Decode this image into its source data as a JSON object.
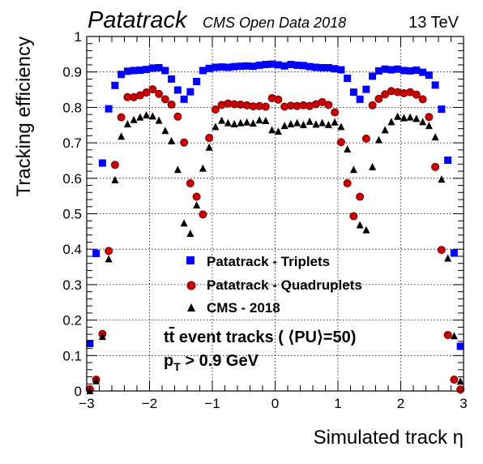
{
  "chart_data": {
    "type": "scatter",
    "header": {
      "brand": "Patatrack",
      "subtitle": "CMS Open Data 2018",
      "energy": "13 TeV"
    },
    "xlabel": "Simulated track η",
    "ylabel": "Tracking efficiency",
    "xlim": [
      -3,
      3
    ],
    "ylim": [
      0,
      1
    ],
    "xticks": [
      -3,
      -2,
      -1,
      0,
      1,
      2,
      3
    ],
    "xtick_labels": [
      "−3",
      "−2",
      "−1",
      "0",
      "1",
      "2",
      "3"
    ],
    "yticks": [
      0,
      0.1,
      0.2,
      0.3,
      0.4,
      0.5,
      0.6,
      0.7,
      0.8,
      0.9,
      1
    ],
    "ytick_labels": [
      "0",
      "0.1",
      "0.2",
      "0.3",
      "0.4",
      "0.5",
      "0.6",
      "0.7",
      "0.8",
      "0.9",
      "1"
    ],
    "grid": true,
    "legend_position": "center-left",
    "annotations": {
      "line1_pre": "t",
      "line1_bar": "t",
      "line1_post": " event tracks ( ⟨PU⟩=50)",
      "line2_main": "p",
      "line2_sub": "T",
      "line2_post": " > 0.9 GeV"
    },
    "x": [
      -2.95,
      -2.85,
      -2.75,
      -2.65,
      -2.55,
      -2.45,
      -2.35,
      -2.25,
      -2.15,
      -2.05,
      -1.95,
      -1.85,
      -1.75,
      -1.65,
      -1.55,
      -1.45,
      -1.35,
      -1.25,
      -1.15,
      -1.05,
      -0.95,
      -0.85,
      -0.75,
      -0.65,
      -0.55,
      -0.45,
      -0.35,
      -0.25,
      -0.15,
      -0.05,
      0.05,
      0.15,
      0.25,
      0.35,
      0.45,
      0.55,
      0.65,
      0.75,
      0.85,
      0.95,
      1.05,
      1.15,
      1.25,
      1.35,
      1.45,
      1.55,
      1.65,
      1.75,
      1.85,
      1.95,
      2.05,
      2.15,
      2.25,
      2.35,
      2.45,
      2.55,
      2.65,
      2.75,
      2.85,
      2.95
    ],
    "series": [
      {
        "name": "Patatrack - Triplets",
        "color": "#0000ff",
        "marker": "square",
        "values": [
          0.134,
          0.388,
          0.643,
          0.796,
          0.862,
          0.893,
          0.902,
          0.904,
          0.905,
          0.907,
          0.911,
          0.912,
          0.904,
          0.88,
          0.849,
          0.823,
          0.844,
          0.873,
          0.904,
          0.91,
          0.913,
          0.914,
          0.913,
          0.915,
          0.916,
          0.917,
          0.916,
          0.919,
          0.921,
          0.922,
          0.92,
          0.917,
          0.921,
          0.919,
          0.918,
          0.915,
          0.913,
          0.912,
          0.912,
          0.909,
          0.906,
          0.882,
          0.843,
          0.823,
          0.851,
          0.888,
          0.903,
          0.908,
          0.906,
          0.908,
          0.904,
          0.903,
          0.905,
          0.899,
          0.891,
          0.863,
          0.795,
          0.651,
          0.389,
          0.126
        ]
      },
      {
        "name": "Patatrack - Quadruplets",
        "color": "#cc0000",
        "marker": "circle",
        "values": [
          0.005,
          0.032,
          0.161,
          0.395,
          0.638,
          0.772,
          0.829,
          0.829,
          0.834,
          0.842,
          0.851,
          0.838,
          0.823,
          0.808,
          0.774,
          0.701,
          0.586,
          0.548,
          0.498,
          0.714,
          0.794,
          0.807,
          0.811,
          0.809,
          0.808,
          0.806,
          0.803,
          0.804,
          0.802,
          0.826,
          0.822,
          0.802,
          0.805,
          0.804,
          0.806,
          0.804,
          0.809,
          0.815,
          0.807,
          0.786,
          0.702,
          0.586,
          0.493,
          0.548,
          0.712,
          0.806,
          0.824,
          0.837,
          0.846,
          0.843,
          0.84,
          0.843,
          0.836,
          0.823,
          0.773,
          0.632,
          0.398,
          0.158,
          0.032,
          0.004
        ]
      },
      {
        "name": "CMS - 2018",
        "color": "#000000",
        "marker": "triangle",
        "values": [
          0.0,
          0.028,
          0.153,
          0.372,
          0.595,
          0.718,
          0.753,
          0.765,
          0.772,
          0.778,
          0.775,
          0.763,
          0.734,
          0.705,
          0.624,
          0.473,
          0.444,
          0.524,
          0.628,
          0.687,
          0.745,
          0.763,
          0.756,
          0.753,
          0.756,
          0.758,
          0.755,
          0.764,
          0.762,
          0.736,
          0.732,
          0.748,
          0.753,
          0.756,
          0.751,
          0.76,
          0.752,
          0.756,
          0.751,
          0.758,
          0.745,
          0.682,
          0.624,
          0.468,
          0.454,
          0.632,
          0.708,
          0.736,
          0.759,
          0.774,
          0.77,
          0.772,
          0.768,
          0.759,
          0.748,
          0.716,
          0.597,
          0.374,
          0.155,
          0.027
        ]
      }
    ]
  }
}
